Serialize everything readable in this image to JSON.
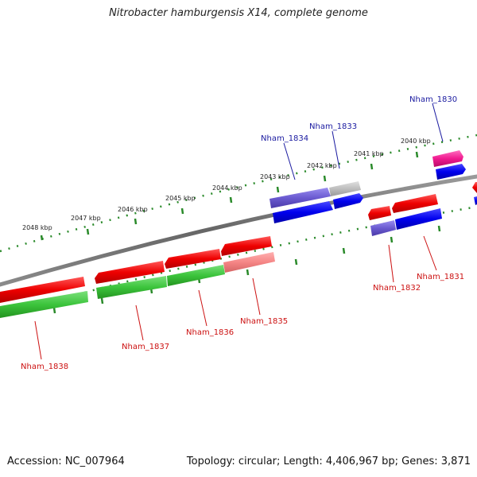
{
  "title": "Nitrobacter hamburgensis X14, complete genome",
  "footer": {
    "accession": "Accession: NC_007964",
    "summary": "Topology: circular; Length: 4,406,967 bp; Genes: 3,871"
  },
  "scale": {
    "tick_labels": [
      "2048 kbp",
      "2047 kbp",
      "2046 kbp",
      "2045 kbp",
      "2044 kbp",
      "2043 kbp",
      "2042 kbp",
      "2041 kbp",
      "2040 kbp"
    ]
  },
  "genes": {
    "forward": [
      "Nham_1834",
      "Nham_1833",
      "Nham_1830"
    ],
    "reverse": [
      "Nham_1838",
      "Nham_1837",
      "Nham_1836",
      "Nham_1835",
      "Nham_1832",
      "Nham_1831"
    ]
  },
  "colors": {
    "forward_label": "#1a1aa0",
    "reverse_label": "#cc1111",
    "backbone": "#777777",
    "scale_dots": "#2a8a2a"
  }
}
